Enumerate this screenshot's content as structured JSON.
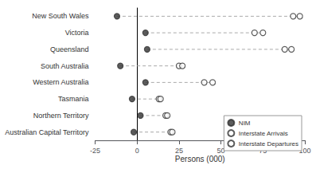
{
  "chart_data": {
    "type": "dot",
    "orientation": "horizontal",
    "xlabel": "Persons (000)",
    "categories": [
      "New South Wales",
      "Victoria",
      "Queensland",
      "South Australia",
      "Western Australia",
      "Tasmania",
      "Northern Territory",
      "Australian Capital Territory"
    ],
    "series": [
      {
        "name": "NIM",
        "color": "#333333",
        "marker": "filled_circle",
        "values": [
          -12,
          5,
          6,
          -10,
          5,
          -3,
          2,
          -2
        ]
      },
      {
        "name": "Interstate Arrivals",
        "color": "#333333",
        "marker": "open_circle",
        "values": [
          93,
          70,
          88,
          25,
          40,
          13,
          17,
          20
        ]
      },
      {
        "name": "Interstate Departures",
        "color": "#333333",
        "marker": "open_circle",
        "values": [
          97,
          75,
          92,
          27,
          45,
          14,
          18,
          21
        ]
      }
    ],
    "xlim": [
      -25,
      100
    ],
    "xticks": [
      -25,
      0,
      25,
      50,
      75,
      100
    ],
    "line_style": "dashed",
    "grid": false,
    "legend": "lower right"
  }
}
